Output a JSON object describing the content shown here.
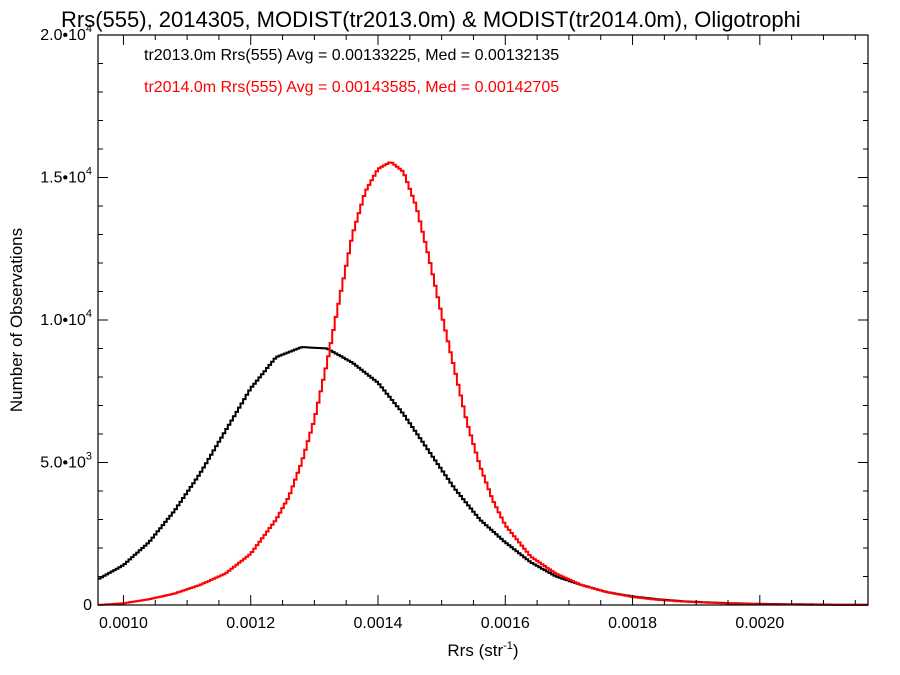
{
  "chart_data": {
    "type": "line",
    "title": "Rrs(555), 2014305, MODIST(tr2013.0m) & MODIST(tr2014.0m), Oligotrophi",
    "xlabel_main": "Rrs (str",
    "xlabel_sup": "-1",
    "xlabel_end": ")",
    "ylabel": "Number of Observations",
    "xlim": [
      0.00096,
      0.00217
    ],
    "ylim": [
      0,
      20000
    ],
    "xticks": [
      {
        "value": 0.001,
        "label": "0.0010"
      },
      {
        "value": 0.0012,
        "label": "0.0012"
      },
      {
        "value": 0.0014,
        "label": "0.0014"
      },
      {
        "value": 0.0016,
        "label": "0.0016"
      },
      {
        "value": 0.0018,
        "label": "0.0018"
      },
      {
        "value": 0.002,
        "label": "0.0020"
      }
    ],
    "yticks": [
      {
        "value": 0,
        "mant": "0",
        "exp": ""
      },
      {
        "value": 5000,
        "mant": "5.0•10",
        "exp": "3"
      },
      {
        "value": 10000,
        "mant": "1.0•10",
        "exp": "4"
      },
      {
        "value": 15000,
        "mant": "1.5•10",
        "exp": "4"
      },
      {
        "value": 20000,
        "mant": "2.0•10",
        "exp": "4"
      }
    ],
    "legend": [
      {
        "text": "tr2013.0m Rrs(555) Avg = 0.00133225, Med = 0.00132135",
        "color": "#000000"
      },
      {
        "text": "tr2014.0m Rrs(555) Avg = 0.00143585, Med = 0.00142705",
        "color": "#ff0000"
      }
    ],
    "series": [
      {
        "color": "#000000",
        "x": [
          0.00096,
          0.001,
          0.00104,
          0.00108,
          0.00112,
          0.00116,
          0.0012,
          0.00124,
          0.00128,
          0.00132,
          0.00136,
          0.0014,
          0.00144,
          0.00148,
          0.00152,
          0.00156,
          0.0016,
          0.00164,
          0.00168,
          0.00172,
          0.00176,
          0.0018,
          0.00184,
          0.00188,
          0.00192,
          0.00196,
          0.002,
          0.00204,
          0.00208,
          0.00212,
          0.00217
        ],
        "y": [
          900,
          1400,
          2200,
          3300,
          4600,
          6100,
          7600,
          8700,
          9050,
          9000,
          8500,
          7800,
          6700,
          5400,
          4100,
          3000,
          2200,
          1500,
          1000,
          700,
          450,
          300,
          200,
          130,
          90,
          60,
          40,
          30,
          20,
          10,
          5
        ]
      },
      {
        "color": "#ff0000",
        "x": [
          0.00096,
          0.001,
          0.00104,
          0.00108,
          0.00112,
          0.00116,
          0.0012,
          0.00124,
          0.00126,
          0.00128,
          0.0013,
          0.00132,
          0.00134,
          0.00136,
          0.00138,
          0.0014,
          0.00142,
          0.00144,
          0.00146,
          0.00148,
          0.0015,
          0.00152,
          0.00154,
          0.00156,
          0.00158,
          0.0016,
          0.00164,
          0.00168,
          0.00172,
          0.00176,
          0.0018,
          0.00184,
          0.00188,
          0.00192,
          0.00196,
          0.002,
          0.00204,
          0.00208,
          0.00212,
          0.00217
        ],
        "y": [
          0,
          60,
          200,
          400,
          700,
          1100,
          1800,
          3000,
          3800,
          5000,
          6500,
          8500,
          10800,
          13000,
          14500,
          15300,
          15550,
          15200,
          14000,
          12200,
          10200,
          8300,
          6400,
          4900,
          3700,
          2800,
          1700,
          1100,
          700,
          450,
          280,
          180,
          120,
          80,
          50,
          30,
          20,
          10,
          5,
          2
        ]
      }
    ]
  }
}
